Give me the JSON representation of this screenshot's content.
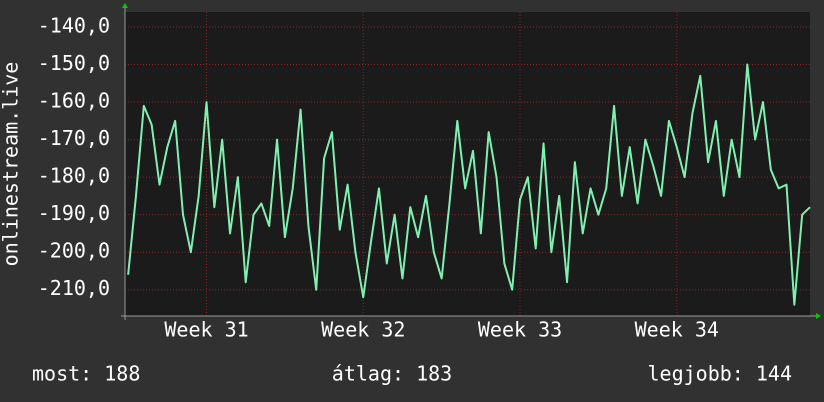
{
  "chart_data": {
    "type": "line",
    "y_label": "onlinestream.live",
    "x": [
      30.5,
      30.55,
      30.6,
      30.65,
      30.7,
      30.75,
      30.8,
      30.85,
      30.9,
      30.95,
      31,
      31.05,
      31.1,
      31.15,
      31.2,
      31.25,
      31.3,
      31.35,
      31.4,
      31.45,
      31.5,
      31.55,
      31.6,
      31.65,
      31.7,
      31.75,
      31.8,
      31.85,
      31.9,
      31.95,
      32,
      32.05,
      32.1,
      32.15,
      32.2,
      32.25,
      32.3,
      32.35,
      32.4,
      32.45,
      32.5,
      32.55,
      32.6,
      32.65,
      32.7,
      32.75,
      32.8,
      32.85,
      32.9,
      32.95,
      33,
      33.05,
      33.1,
      33.15,
      33.2,
      33.25,
      33.3,
      33.35,
      33.4,
      33.45,
      33.5,
      33.55,
      33.6,
      33.65,
      33.7,
      33.75,
      33.8,
      33.85,
      33.9,
      33.95,
      34,
      34.05,
      34.1,
      34.15,
      34.2,
      34.25,
      34.3,
      34.35,
      34.4,
      34.45,
      34.5,
      34.55,
      34.6,
      34.65,
      34.7,
      34.75,
      34.8,
      34.85
    ],
    "series": [
      {
        "color": "#7ff0b0",
        "values": [
          -206,
          -185,
          -161,
          -166,
          -182,
          -172,
          -165,
          -190,
          -200,
          -185,
          -160,
          -188,
          -170,
          -195,
          -180,
          -208,
          -190,
          -187,
          -193,
          -170,
          -196,
          -183,
          -162,
          -193,
          -210,
          -175,
          -168,
          -194,
          -182,
          -200,
          -212,
          -197,
          -183,
          -203,
          -190,
          -207,
          -188,
          -196,
          -185,
          -200,
          -207,
          -187,
          -165,
          -183,
          -173,
          -195,
          -168,
          -180,
          -203,
          -210,
          -186,
          -180,
          -199,
          -171,
          -200,
          -185,
          -208,
          -176,
          -195,
          -183,
          -190,
          -183,
          -161,
          -185,
          -172,
          -187,
          -170,
          -177,
          -185,
          -165,
          -172,
          -180,
          -163,
          -153,
          -176,
          -165,
          -185,
          -170,
          -180,
          -150,
          -170,
          -160,
          -178,
          -183,
          -182,
          -214,
          -190,
          -188
        ]
      }
    ],
    "xlim": [
      30.48,
      34.85
    ],
    "xticks": [
      {
        "value": 31,
        "label": "Week 31"
      },
      {
        "value": 32,
        "label": "Week 32"
      },
      {
        "value": 33,
        "label": "Week 33"
      },
      {
        "value": 34,
        "label": "Week 34"
      }
    ],
    "ylim": [
      -217,
      -136
    ],
    "yticks": [
      {
        "value": -140,
        "label": "-140,0"
      },
      {
        "value": -150,
        "label": "-150,0"
      },
      {
        "value": -160,
        "label": "-160,0"
      },
      {
        "value": -170,
        "label": "-170,0"
      },
      {
        "value": -180,
        "label": "-180,0"
      },
      {
        "value": -190,
        "label": "-190,0"
      },
      {
        "value": -200,
        "label": "-200,0"
      },
      {
        "value": -210,
        "label": "-210,0"
      }
    ],
    "grid": true,
    "stats": [
      "most: 188",
      "átlag: 183",
      "legjobb: 144"
    ]
  }
}
